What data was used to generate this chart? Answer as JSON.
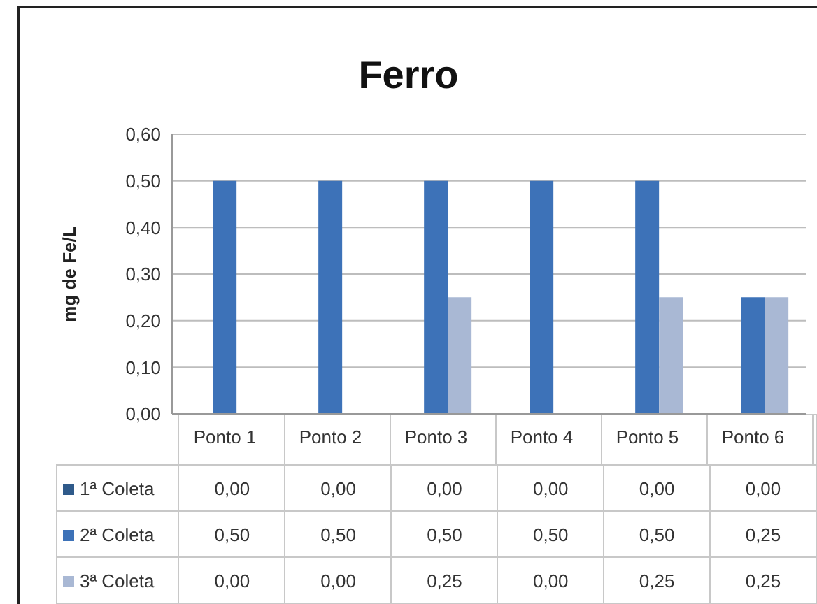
{
  "chart_data": {
    "type": "bar",
    "title": "Ferro",
    "ylabel": "mg de Fe/L",
    "categories": [
      "Ponto 1",
      "Ponto 2",
      "Ponto 3",
      "Ponto 4",
      "Ponto 5",
      "Ponto 6"
    ],
    "series": [
      {
        "name": "1ª Coleta",
        "color": "#2f5a8a",
        "values": [
          0,
          0,
          0,
          0,
          0,
          0
        ],
        "value_labels": [
          "0,00",
          "0,00",
          "0,00",
          "0,00",
          "0,00",
          "0,00"
        ]
      },
      {
        "name": "2ª Coleta",
        "color": "#3d72b8",
        "values": [
          0.5,
          0.5,
          0.5,
          0.5,
          0.5,
          0.25
        ],
        "value_labels": [
          "0,50",
          "0,50",
          "0,50",
          "0,50",
          "0,50",
          "0,25"
        ]
      },
      {
        "name": "3ª Coleta",
        "color": "#a9b8d4",
        "values": [
          0,
          0,
          0.25,
          0,
          0.25,
          0.25
        ],
        "value_labels": [
          "0,00",
          "0,00",
          "0,25",
          "0,00",
          "0,25",
          "0,25"
        ]
      }
    ],
    "ylim": [
      0,
      0.6
    ],
    "yticks": [
      {
        "value": 0,
        "label": "0,00"
      },
      {
        "value": 0.1,
        "label": "0,10"
      },
      {
        "value": 0.2,
        "label": "0,20"
      },
      {
        "value": 0.3,
        "label": "0,30"
      },
      {
        "value": 0.4,
        "label": "0,40"
      },
      {
        "value": 0.5,
        "label": "0,50"
      },
      {
        "value": 0.6,
        "label": "0,60"
      }
    ],
    "grid": "y",
    "legend": "bottom"
  }
}
